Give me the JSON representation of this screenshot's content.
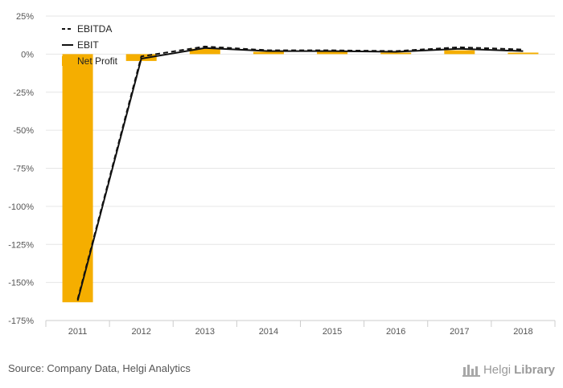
{
  "chart_data": {
    "type": "bar+line",
    "categories": [
      "2011",
      "2012",
      "2013",
      "2014",
      "2015",
      "2016",
      "2017",
      "2018"
    ],
    "series": [
      {
        "name": "Net Profit",
        "kind": "bar",
        "color": "#f5ae00",
        "values": [
          -163,
          -4.5,
          3.5,
          1.5,
          1.5,
          1.0,
          2.5,
          1.0
        ]
      },
      {
        "name": "EBITDA",
        "kind": "line",
        "dash": "dashed",
        "color": "#111111",
        "values": [
          -161,
          -1.5,
          5.0,
          2.5,
          2.5,
          2.0,
          4.5,
          3.0
        ]
      },
      {
        "name": "EBIT",
        "kind": "line",
        "dash": "solid",
        "color": "#111111",
        "values": [
          -162,
          -3.0,
          4.0,
          2.0,
          2.0,
          1.5,
          3.5,
          2.0
        ]
      }
    ],
    "yticks": [
      "25%",
      "0%",
      "-25%",
      "-50%",
      "-75%",
      "-100%",
      "-125%",
      "-150%",
      "-175%"
    ],
    "ytick_values": [
      25,
      0,
      -25,
      -50,
      -75,
      -100,
      -125,
      -150,
      -175
    ],
    "ylim": [
      -175,
      25
    ],
    "grid": true,
    "legend_position": "top-left"
  },
  "footer": {
    "source": "Source: Company Data, Helgi Analytics",
    "brand_part1": "Helgi",
    "brand_part2": "Library"
  }
}
